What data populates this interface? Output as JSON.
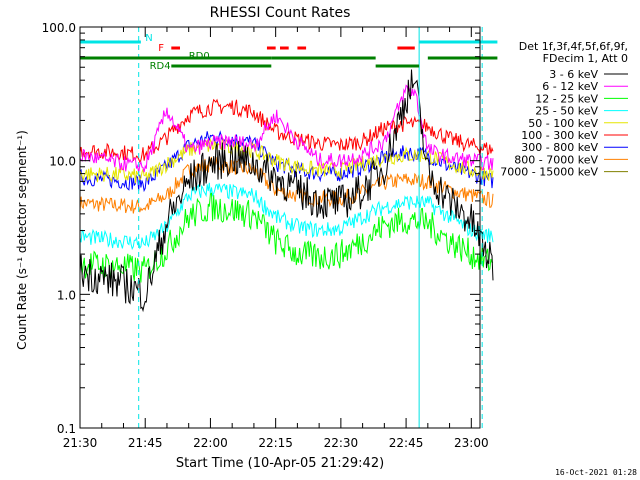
{
  "chart_data": {
    "type": "line",
    "title": "RHESSI Count Rates",
    "xlabel": "Start Time (10-Apr-05 21:29:42)",
    "ylabel": "Count Rate (s⁻¹ detector segment⁻¹)",
    "yscale": "log",
    "ylim": [
      0.1,
      100.0
    ],
    "y_ticks": [
      "0.1",
      "1.0",
      "10.0",
      "100.0"
    ],
    "x_ticks": [
      "21:30",
      "21:45",
      "22:00",
      "22:15",
      "22:30",
      "22:45",
      "23:00"
    ],
    "xlim_minutes_after_2130": [
      0,
      92
    ],
    "legend_position": "right",
    "legend_header": [
      "Det 1f,3f,4f,5f,6f,9f,",
      "FDecim 1, Att 0"
    ],
    "footer_date": "16-Oct-2021 01:28",
    "vertical_lines": [
      {
        "time": "21:30",
        "style": "solid",
        "color": "#00e5e5"
      },
      {
        "time": "21:43:30",
        "style": "dashed",
        "color": "#00e5e5"
      },
      {
        "time": "22:48",
        "style": "solid",
        "color": "#00e5e5"
      },
      {
        "time": "23:02:30",
        "style": "dashed",
        "color": "#00e5e5"
      }
    ],
    "flag_bars": [
      {
        "label": "N",
        "color": "#00e5e5",
        "segments": [
          [
            "21:30",
            "21:44"
          ],
          [
            "22:48",
            "23:06"
          ]
        ]
      },
      {
        "label": "F",
        "color": "#ff0000",
        "segments": [
          [
            "21:51",
            "21:53"
          ],
          [
            "22:13",
            "22:15"
          ],
          [
            "22:16",
            "22:18"
          ],
          [
            "22:20",
            "22:22"
          ],
          [
            "22:43",
            "22:47"
          ]
        ]
      },
      {
        "label": "RD0",
        "color": "#008000",
        "segments": [
          [
            "21:30",
            "22:14"
          ],
          [
            "22:14",
            "22:38"
          ],
          [
            "22:50",
            "23:06"
          ]
        ]
      },
      {
        "label": "RD4",
        "color": "#008000",
        "segments": [
          [
            "21:51",
            "22:14"
          ],
          [
            "22:38",
            "22:48"
          ]
        ]
      }
    ],
    "series": [
      {
        "name": "3 - 6 keV",
        "color": "#000000",
        "times": [
          "21:30",
          "21:40",
          "21:45",
          "21:50",
          "21:55",
          "22:00",
          "22:05",
          "22:10",
          "22:15",
          "22:20",
          "22:25",
          "22:30",
          "22:35",
          "22:40",
          "22:45",
          "22:47",
          "22:50",
          "22:55",
          "23:00",
          "23:05"
        ],
        "values": [
          1.5,
          1.2,
          1.0,
          3.5,
          7.0,
          9.5,
          10.5,
          9.5,
          7.5,
          6.0,
          5.0,
          4.8,
          6.0,
          9.0,
          30.0,
          40.0,
          8.0,
          5.0,
          3.5,
          1.6
        ]
      },
      {
        "name": "6 - 12 keV",
        "color": "#ff00ff",
        "times": [
          "21:30",
          "21:40",
          "21:45",
          "21:50",
          "21:55",
          "22:00",
          "22:05",
          "22:10",
          "22:15",
          "22:20",
          "22:25",
          "22:30",
          "22:35",
          "22:40",
          "22:45",
          "22:47",
          "22:50",
          "22:55",
          "23:00",
          "23:05"
        ],
        "values": [
          11.0,
          9.5,
          9.0,
          24.0,
          12.0,
          13.5,
          14.0,
          13.0,
          22.0,
          14.0,
          10.0,
          10.0,
          11.0,
          14.0,
          34.0,
          33.0,
          12.0,
          10.5,
          10.0,
          9.5
        ]
      },
      {
        "name": "12 - 25 keV",
        "color": "#00ff00",
        "times": [
          "21:30",
          "21:40",
          "21:45",
          "21:50",
          "21:55",
          "22:00",
          "22:05",
          "22:10",
          "22:15",
          "22:20",
          "22:25",
          "22:30",
          "22:35",
          "22:40",
          "22:45",
          "22:50",
          "22:55",
          "23:00",
          "23:05"
        ],
        "values": [
          1.7,
          1.6,
          1.5,
          2.2,
          3.8,
          4.5,
          4.3,
          3.9,
          2.5,
          2.0,
          1.9,
          2.0,
          2.5,
          3.3,
          3.6,
          3.4,
          2.5,
          2.0,
          1.7
        ]
      },
      {
        "name": "25 - 50 keV",
        "color": "#00ffff",
        "times": [
          "21:30",
          "21:40",
          "21:45",
          "21:50",
          "21:55",
          "22:00",
          "22:05",
          "22:10",
          "22:15",
          "22:20",
          "22:25",
          "22:30",
          "22:35",
          "22:40",
          "22:45",
          "22:50",
          "22:55",
          "23:00",
          "23:05"
        ],
        "values": [
          2.7,
          2.5,
          2.4,
          3.2,
          5.5,
          6.2,
          5.8,
          5.5,
          3.8,
          3.2,
          3.0,
          3.1,
          3.8,
          4.5,
          4.9,
          4.8,
          3.8,
          3.0,
          2.7
        ]
      },
      {
        "name": "50 - 100 keV",
        "color": "#e5e500",
        "times": [
          "21:30",
          "21:40",
          "21:45",
          "21:50",
          "21:55",
          "22:00",
          "22:05",
          "22:10",
          "22:15",
          "22:20",
          "22:25",
          "22:30",
          "22:35",
          "22:40",
          "22:45",
          "22:50",
          "22:55",
          "23:00",
          "23:05"
        ],
        "values": [
          8.0,
          7.8,
          7.5,
          9.5,
          12.0,
          13.0,
          12.5,
          12.0,
          10.0,
          9.0,
          8.5,
          8.5,
          9.5,
          10.5,
          11.0,
          11.0,
          9.5,
          8.5,
          8.0
        ]
      },
      {
        "name": "100 - 300 keV",
        "color": "#ff0000",
        "times": [
          "21:30",
          "21:40",
          "21:45",
          "21:50",
          "21:55",
          "22:00",
          "22:05",
          "22:10",
          "22:15",
          "22:20",
          "22:25",
          "22:30",
          "22:35",
          "22:40",
          "22:45",
          "22:50",
          "22:55",
          "23:00",
          "23:05"
        ],
        "values": [
          12.0,
          11.5,
          11.0,
          15.0,
          22.0,
          25.0,
          25.5,
          23.0,
          16.5,
          14.5,
          13.5,
          13.0,
          14.0,
          17.5,
          19.0,
          18.0,
          14.5,
          13.0,
          12.0
        ]
      },
      {
        "name": "300 - 800 keV",
        "color": "#0000ff",
        "times": [
          "21:30",
          "21:40",
          "21:45",
          "21:50",
          "21:55",
          "22:00",
          "22:05",
          "22:10",
          "22:15",
          "22:20",
          "22:25",
          "22:30",
          "22:35",
          "22:40",
          "22:45",
          "22:50",
          "22:55",
          "23:00",
          "23:05"
        ],
        "values": [
          7.5,
          7.0,
          6.8,
          9.0,
          13.0,
          15.0,
          14.5,
          13.5,
          9.5,
          8.5,
          8.0,
          8.0,
          9.0,
          10.5,
          11.5,
          11.0,
          9.0,
          8.0,
          7.0
        ]
      },
      {
        "name": "800 - 7000 keV",
        "color": "#ff8000",
        "times": [
          "21:30",
          "21:40",
          "21:45",
          "21:50",
          "21:55",
          "22:00",
          "22:05",
          "22:10",
          "22:15",
          "22:20",
          "22:25",
          "22:30",
          "22:35",
          "22:40",
          "22:45",
          "22:50",
          "22:55",
          "23:00",
          "23:05"
        ],
        "values": [
          4.8,
          4.6,
          4.5,
          5.5,
          8.5,
          9.5,
          9.0,
          8.5,
          6.0,
          5.5,
          5.2,
          5.2,
          5.8,
          6.8,
          7.2,
          7.0,
          6.0,
          5.5,
          5.0
        ]
      },
      {
        "name": "7000 - 15000 keV",
        "color": "#808000",
        "times": [],
        "values": []
      }
    ]
  }
}
